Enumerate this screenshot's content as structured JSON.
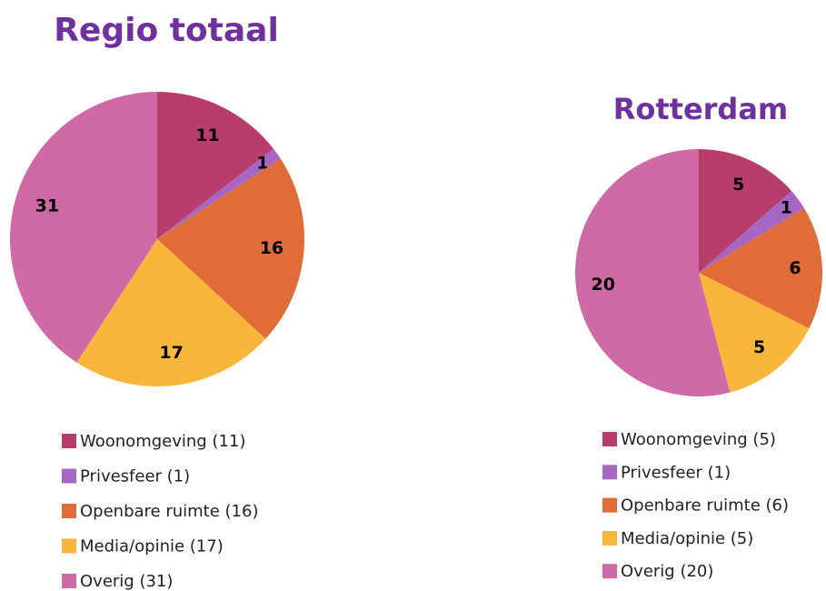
{
  "chart_data": [
    {
      "type": "pie",
      "title": "Regio totaal",
      "categories": [
        "Woonomgeving (11)",
        "Privesfeer (1)",
        "Openbare ruimte (16)",
        "Media/opinie (17)",
        "Overig (31)"
      ],
      "values": [
        11,
        1,
        16,
        17,
        31
      ],
      "colors": [
        "#b83d6a",
        "#a566c4",
        "#e06c38",
        "#f8b63a",
        "#d06aa6"
      ],
      "legend": "bottom"
    },
    {
      "type": "pie",
      "title": "Rotterdam",
      "categories": [
        "Woonomgeving (5)",
        "Privesfeer (1)",
        "Openbare ruimte (6)",
        "Media/opinie (5)",
        "Overig (20)"
      ],
      "values": [
        5,
        1,
        6,
        5,
        20
      ],
      "colors": [
        "#b83d6a",
        "#a566c4",
        "#e06c38",
        "#f8b63a",
        "#d06aa6"
      ],
      "legend": "bottom"
    }
  ]
}
